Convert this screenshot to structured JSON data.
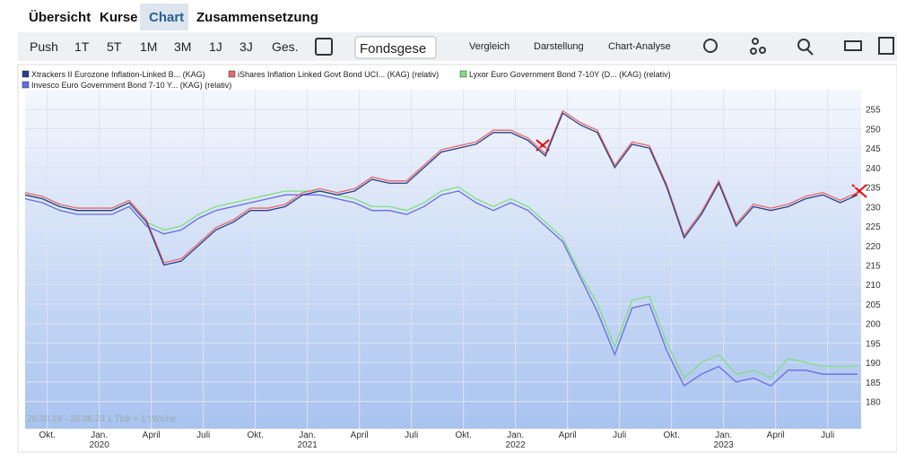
{
  "tabs": [
    "Übersicht",
    "Kurse",
    "Chart",
    "Zusammensetzung"
  ],
  "toolbar": {
    "periods": [
      "Push",
      "1T",
      "5T",
      "1M",
      "3M",
      "1J",
      "3J",
      "Ges."
    ],
    "select": "Fondsgese",
    "menus": [
      "Vergleich",
      "Darstellung",
      "Chart-Analyse"
    ]
  },
  "chart_data": {
    "type": "line",
    "note": "28.08.19 - 28.08.23   1 Tick = 1 Woche",
    "categories": [
      null,
      null,
      "Okt.",
      null,
      null,
      "Jan.",
      null,
      null,
      "April",
      null,
      null,
      "Juli",
      null,
      null,
      "Okt.",
      null,
      null,
      "Jan.",
      null,
      null,
      "April",
      null,
      null,
      "Juli",
      null,
      null,
      "Okt.",
      null,
      null,
      "Jan.",
      null,
      null,
      "April",
      null,
      null,
      "Juli",
      null,
      null,
      "Okt.",
      null,
      null,
      "Jan.",
      null,
      null,
      "April",
      null,
      null,
      "Juli",
      null
    ],
    "years": [
      null,
      null,
      null,
      null,
      null,
      "2020",
      null,
      null,
      null,
      null,
      null,
      null,
      null,
      null,
      null,
      null,
      null,
      "2021",
      null,
      null,
      null,
      null,
      null,
      null,
      null,
      null,
      null,
      null,
      null,
      "2022",
      null,
      null,
      null,
      null,
      null,
      null,
      null,
      null,
      null,
      null,
      null,
      "2023",
      null,
      null,
      null,
      null,
      null,
      null,
      null
    ],
    "series": [
      {
        "name": "Xtrackers II Eurozone Inflation-Linked B... (KAG)",
        "color": "#2b3f8c",
        "values": [
          233,
          232,
          230,
          229,
          229,
          229,
          231,
          226,
          215,
          216,
          220,
          224,
          226,
          229,
          229,
          230,
          233,
          234,
          233,
          234,
          237,
          236,
          236,
          240,
          244,
          245,
          246,
          249,
          249,
          247,
          243,
          254,
          251,
          249,
          240,
          246,
          245,
          235,
          222,
          228,
          236,
          225,
          230,
          229,
          230,
          232,
          233,
          231,
          233
        ]
      },
      {
        "name": "iShares Inflation Linked Govt Bond UCI... (KAG) (relativ)",
        "color": "#e86a6a",
        "values": [
          233.6,
          232.6,
          230.6,
          229.6,
          229.6,
          229.6,
          231.6,
          226.6,
          215.6,
          216.6,
          220.6,
          224.6,
          226.6,
          229.6,
          229.6,
          230.6,
          233.6,
          234.6,
          233.6,
          234.6,
          237.6,
          236.6,
          236.6,
          240.6,
          244.6,
          245.6,
          246.6,
          249.6,
          249.6,
          247.6,
          243.6,
          254.6,
          251.6,
          249.6,
          240.6,
          246.6,
          245.6,
          235.6,
          222.6,
          228.6,
          236.6,
          225.6,
          230.6,
          229.6,
          230.6,
          232.6,
          233.6,
          231.6,
          233.6
        ]
      },
      {
        "name": "Lyxor Euro Government Bond 7-10Y (D... (KAG) (relativ)",
        "color": "#7ee07e",
        "values": [
          233,
          232,
          230,
          229,
          229,
          229,
          231,
          226,
          224,
          225,
          228,
          230,
          231,
          232,
          233,
          234,
          234,
          234,
          233,
          232,
          230,
          230,
          229,
          231,
          234,
          235,
          232,
          230,
          232,
          230,
          226,
          222,
          213,
          205,
          194,
          206,
          207,
          195,
          186,
          190,
          192,
          187,
          188,
          186,
          191,
          190,
          189,
          189,
          189
        ]
      },
      {
        "name": "Invesco Euro Government Bond 7-10 Y... (KAG) (relativ)",
        "color": "#6a6ae6",
        "values": [
          232,
          231,
          229,
          228,
          228,
          228,
          230,
          225,
          223,
          224,
          227,
          229,
          230,
          231,
          232,
          233,
          233,
          233,
          232,
          231,
          229,
          229,
          228,
          230,
          233,
          234,
          231,
          229,
          231,
          229,
          225,
          221,
          212,
          203,
          192,
          204,
          205,
          193,
          184,
          187,
          189,
          185,
          186,
          184,
          188,
          188,
          187,
          187,
          187
        ]
      }
    ],
    "ylim": [
      173,
      260
    ],
    "yticks": [
      180,
      185,
      190,
      195,
      200,
      205,
      210,
      215,
      220,
      225,
      230,
      235,
      240,
      245,
      250,
      255
    ],
    "grid": true
  }
}
